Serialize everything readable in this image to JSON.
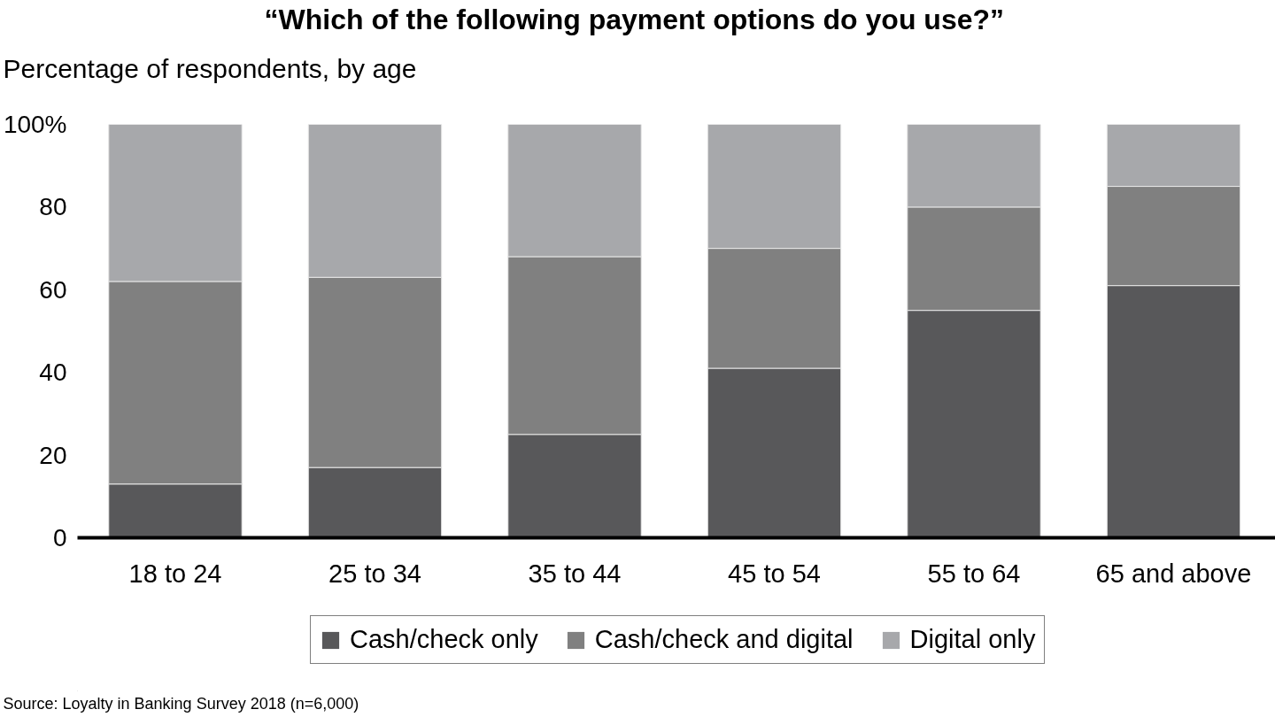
{
  "chart_data": {
    "type": "bar",
    "title": "“Which of the following payment options do you use?”",
    "subtitle": "Percentage of respondents, by age",
    "categories": [
      "18 to 24",
      "25 to 34",
      "35 to 44",
      "45 to 54",
      "55 to 64",
      "65 and above"
    ],
    "series": [
      {
        "name": "Cash/check only",
        "color": "#58585a",
        "values": [
          13,
          17,
          25,
          41,
          55,
          61
        ]
      },
      {
        "name": "Cash/check and digital",
        "color": "#808080",
        "values": [
          49,
          46,
          43,
          29,
          25,
          24
        ]
      },
      {
        "name": "Digital only",
        "color": "#a7a8ab",
        "values": [
          38,
          37,
          32,
          30,
          20,
          15
        ]
      }
    ],
    "stacked": true,
    "ylim": [
      0,
      100
    ],
    "yticks": [
      0,
      20,
      40,
      60,
      80,
      {
        "value": 100,
        "label": "100%"
      }
    ],
    "legend": "bottom",
    "annotations": [
      "Source: Loyalty in Banking Survey 2018 (n=6,000)"
    ]
  }
}
